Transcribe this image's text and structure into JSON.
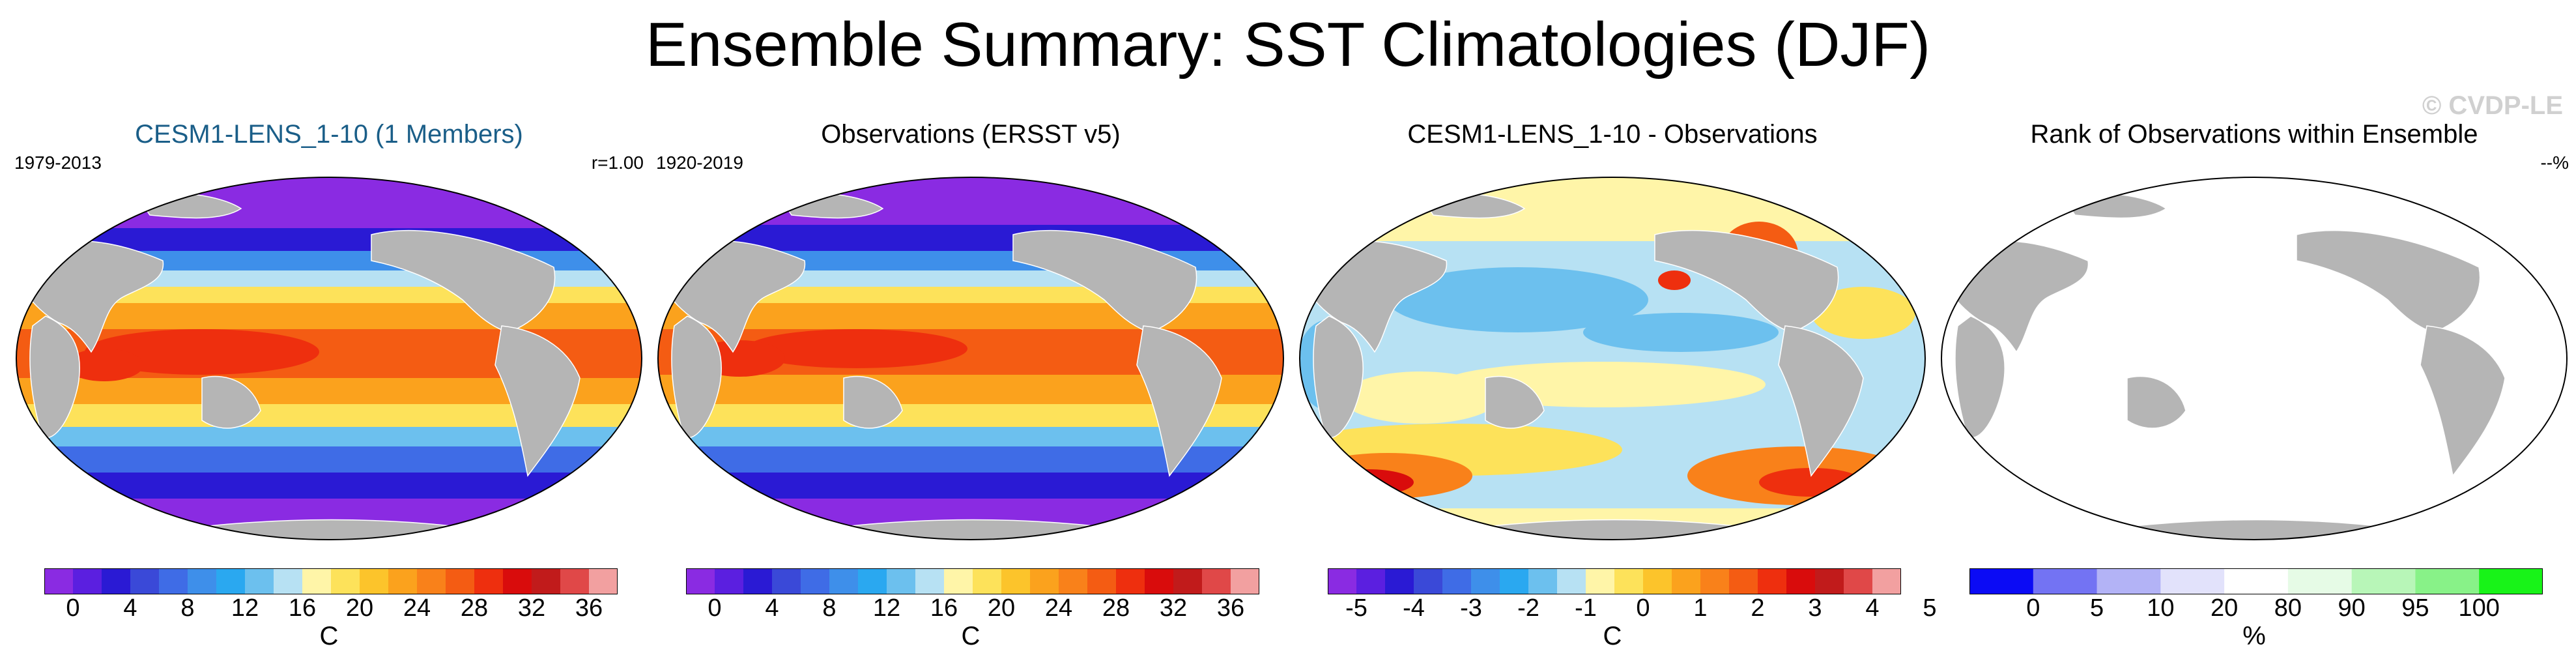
{
  "title": "Ensemble Summary: SST Climatologies (DJF)",
  "watermark": "© CVDP-LE",
  "panels": [
    {
      "title": "CESM1-LENS_1-10 (1 Members)",
      "left_label": "1979-2013",
      "right_label": "r=1.00",
      "map": "sst",
      "unit": "C",
      "colorbar": {
        "colors": [
          "#8a2be2",
          "#5b1fe0",
          "#2a1ad4",
          "#3a49d8",
          "#3f6ce6",
          "#3e8fea",
          "#2aa8f0",
          "#6cc0ee",
          "#b7e1f3",
          "#fff5a8",
          "#fde25a",
          "#fcc42b",
          "#fba21d",
          "#f9811a",
          "#f45c13",
          "#ee2f0e",
          "#d90c0c",
          "#c11b1b",
          "#e04848",
          "#f2a0a0"
        ],
        "labels": [
          "0",
          "4",
          "8",
          "12",
          "16",
          "20",
          "24",
          "28",
          "32",
          "36"
        ]
      }
    },
    {
      "title": "Observations (ERSST v5)",
      "left_label": "1920-2019",
      "right_label": "",
      "map": "sst",
      "unit": "C",
      "colorbar": {
        "colors": [
          "#8a2be2",
          "#5b1fe0",
          "#2a1ad4",
          "#3a49d8",
          "#3f6ce6",
          "#3e8fea",
          "#2aa8f0",
          "#6cc0ee",
          "#b7e1f3",
          "#fff5a8",
          "#fde25a",
          "#fcc42b",
          "#fba21d",
          "#f9811a",
          "#f45c13",
          "#ee2f0e",
          "#d90c0c",
          "#c11b1b",
          "#e04848",
          "#f2a0a0"
        ],
        "labels": [
          "0",
          "4",
          "8",
          "12",
          "16",
          "20",
          "24",
          "28",
          "32",
          "36"
        ]
      }
    },
    {
      "title": "CESM1-LENS_1-10 - Observations",
      "left_label": "",
      "right_label": "",
      "map": "diff",
      "unit": "C",
      "colorbar": {
        "colors": [
          "#8a2be2",
          "#5b1fe0",
          "#2a1ad4",
          "#3a49d8",
          "#3f6ce6",
          "#3e8fea",
          "#2aa8f0",
          "#6cc0ee",
          "#b7e1f3",
          "#fff5a8",
          "#fde25a",
          "#fcc42b",
          "#fba21d",
          "#f9811a",
          "#f45c13",
          "#ee2f0e",
          "#d90c0c",
          "#c11b1b",
          "#e04848",
          "#f2a0a0"
        ],
        "labels": [
          "-5",
          "-4",
          "-3",
          "-2",
          "-1",
          "0",
          "1",
          "2",
          "3",
          "4",
          "5"
        ]
      }
    },
    {
      "title": "Rank of Observations within Ensemble",
      "left_label": "",
      "right_label": "--%",
      "map": "rank",
      "unit": "%",
      "colorbar": {
        "colors": [
          "#0b0bf5",
          "#7373f3",
          "#b3b3f6",
          "#e2e2fb",
          "#ffffff",
          "#e6fbe6",
          "#b8f6b8",
          "#88f288",
          "#18f318"
        ],
        "labels": [
          "0",
          "5",
          "10",
          "20",
          "80",
          "90",
          "95",
          "100"
        ]
      }
    }
  ]
}
